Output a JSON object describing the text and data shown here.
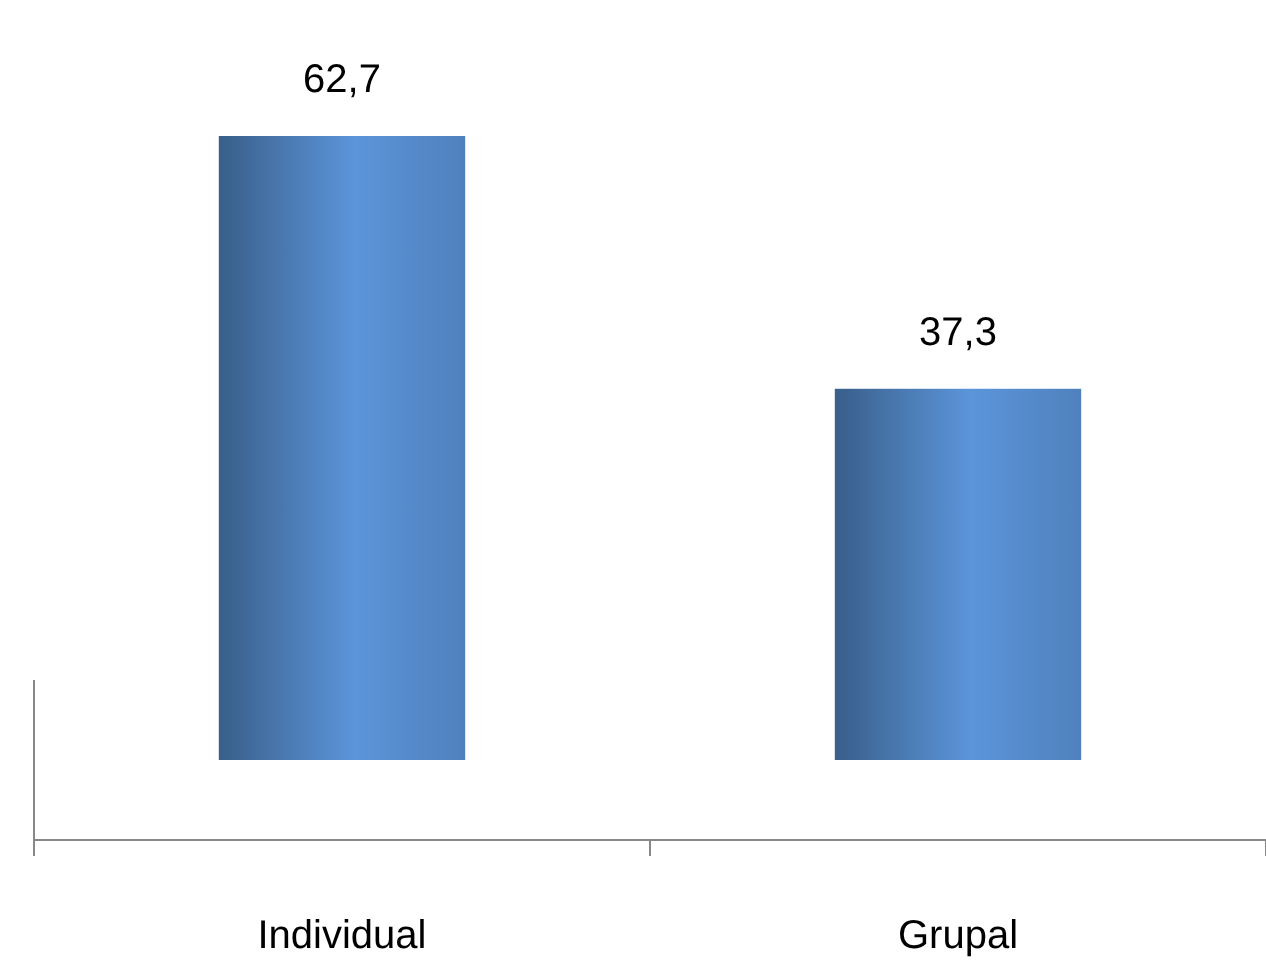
{
  "chart_data": {
    "type": "bar",
    "relative": false,
    "categories": [
      "Individual",
      "Grupal"
    ],
    "values": [
      62.7,
      37.3
    ],
    "value_labels": [
      "62,7",
      "37,3"
    ],
    "color": "#4f81bd"
  }
}
